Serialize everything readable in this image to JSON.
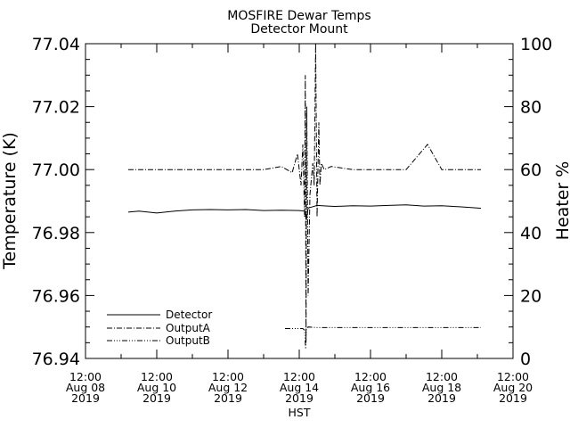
{
  "chart_data": {
    "type": "line",
    "title": "MOSFIRE Dewar Temps",
    "subtitle": "Detector Mount",
    "xlabel": "HST",
    "ylabel": "Temperature (K)",
    "y2label": "Heater %",
    "xlim": [
      0,
      12
    ],
    "ylim": [
      76.94,
      77.04
    ],
    "y2lim": [
      0,
      100
    ],
    "x_ticks": [
      {
        "x": 0,
        "time": "12:00",
        "date": "Aug 08",
        "year": "2019"
      },
      {
        "x": 2,
        "time": "12:00",
        "date": "Aug 10",
        "year": "2019"
      },
      {
        "x": 4,
        "time": "12:00",
        "date": "Aug 12",
        "year": "2019"
      },
      {
        "x": 6,
        "time": "12:00",
        "date": "Aug 14",
        "year": "2019"
      },
      {
        "x": 8,
        "time": "12:00",
        "date": "Aug 16",
        "year": "2019"
      },
      {
        "x": 10,
        "time": "12:00",
        "date": "Aug 18",
        "year": "2019"
      },
      {
        "x": 12,
        "time": "12:00",
        "date": "Aug 20",
        "year": "2019"
      }
    ],
    "y_ticks": [
      "76.94",
      "76.96",
      "76.98",
      "77.00",
      "77.02",
      "77.04"
    ],
    "y2_ticks": [
      "0",
      "20",
      "40",
      "60",
      "80",
      "100"
    ],
    "legend_position": "bottom-left",
    "series": [
      {
        "name": "Detector",
        "axis": "left",
        "style": "solid",
        "x": [
          1.2,
          1.5,
          2.0,
          2.5,
          3.0,
          3.5,
          4.0,
          4.5,
          5.0,
          5.5,
          6.0,
          6.15,
          6.2,
          6.25,
          6.35,
          6.5,
          6.8,
          7.0,
          7.5,
          8.0,
          8.5,
          9.0,
          9.5,
          10.0,
          10.5,
          11.0,
          11.1
        ],
        "values": [
          76.9865,
          76.9868,
          76.9862,
          76.9868,
          76.9872,
          76.9873,
          76.9872,
          76.9873,
          76.987,
          76.9871,
          76.987,
          76.9868,
          76.984,
          76.9878,
          76.9881,
          76.9886,
          76.9884,
          76.9883,
          76.9885,
          76.9884,
          76.9886,
          76.9888,
          76.9884,
          76.9885,
          76.9882,
          76.9878,
          76.9877
        ]
      },
      {
        "name": "OutputA",
        "axis": "right",
        "style": "dashdot",
        "x": [
          1.2,
          2.0,
          3.0,
          4.0,
          5.0,
          5.5,
          5.8,
          5.95,
          6.05,
          6.1,
          6.15,
          6.17,
          6.19,
          6.21,
          6.25,
          6.3,
          6.38,
          6.42,
          6.46,
          6.5,
          6.55,
          6.58,
          6.62,
          6.7,
          6.9,
          7.5,
          8.0,
          8.5,
          9.0,
          9.6,
          10.0,
          10.5,
          11.0,
          11.1
        ],
        "values": [
          60,
          60,
          60,
          60,
          60,
          61,
          59,
          65,
          55,
          68,
          45,
          90,
          5,
          80,
          20,
          52,
          62,
          55,
          100,
          45,
          75,
          55,
          62,
          60,
          61,
          60,
          60,
          60,
          60,
          68,
          60,
          60,
          60,
          60
        ]
      },
      {
        "name": "OutputB",
        "axis": "right",
        "style": "dashdotdotdot",
        "x": [
          5.6,
          6.0,
          6.1,
          6.15,
          6.18,
          6.2,
          6.25,
          6.5,
          8.0,
          10.0,
          11.1
        ],
        "values": [
          9.5,
          9.5,
          9.5,
          9.0,
          3.0,
          9.5,
          10.0,
          9.8,
          9.8,
          9.8,
          9.8
        ]
      }
    ]
  }
}
